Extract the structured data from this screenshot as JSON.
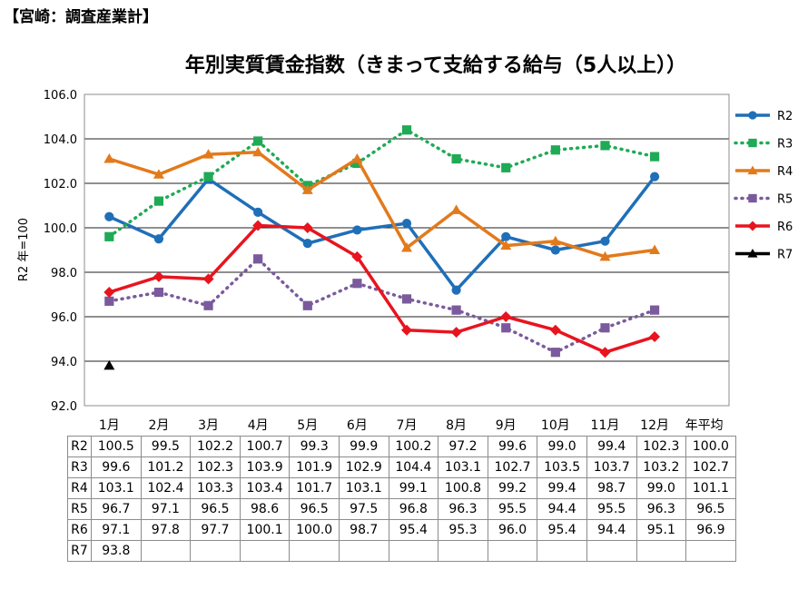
{
  "header": {
    "label": "【宮崎：調査産業計】"
  },
  "chart_data": {
    "type": "line",
    "title": "年別実質賃金指数（きまって支給する給与（5人以上））",
    "ylabel": "R2 年=100",
    "ylim": [
      92.0,
      106.0
    ],
    "yticks": [
      "92.0",
      "94.0",
      "96.0",
      "98.0",
      "100.0",
      "102.0",
      "104.0",
      "106.0"
    ],
    "categories": [
      "1月",
      "2月",
      "3月",
      "4月",
      "5月",
      "6月",
      "7月",
      "8月",
      "9月",
      "10月",
      "11月",
      "12月",
      "年平均"
    ],
    "grid": true,
    "legend_position": "right",
    "series": [
      {
        "name": "R2",
        "color": "#1f6fb8",
        "dash": "solid",
        "marker": "circle",
        "values": [
          100.5,
          99.5,
          102.2,
          100.7,
          99.3,
          99.9,
          100.2,
          97.2,
          99.6,
          99.0,
          99.4,
          102.3,
          100.0
        ]
      },
      {
        "name": "R3",
        "color": "#1faa55",
        "dash": "dotted",
        "marker": "square",
        "values": [
          99.6,
          101.2,
          102.3,
          103.9,
          101.9,
          102.9,
          104.4,
          103.1,
          102.7,
          103.5,
          103.7,
          103.2,
          102.7
        ]
      },
      {
        "name": "R4",
        "color": "#e27a1c",
        "dash": "solid",
        "marker": "triangle",
        "values": [
          103.1,
          102.4,
          103.3,
          103.4,
          101.7,
          103.1,
          99.1,
          100.8,
          99.2,
          99.4,
          98.7,
          99.0,
          101.1
        ]
      },
      {
        "name": "R5",
        "color": "#7a5a9c",
        "dash": "dotted",
        "marker": "square",
        "values": [
          96.7,
          97.1,
          96.5,
          98.6,
          96.5,
          97.5,
          96.8,
          96.3,
          95.5,
          94.4,
          95.5,
          96.3,
          96.5
        ]
      },
      {
        "name": "R6",
        "color": "#e8141e",
        "dash": "solid",
        "marker": "diamond",
        "values": [
          97.1,
          97.8,
          97.7,
          100.1,
          100.0,
          98.7,
          95.4,
          95.3,
          96.0,
          95.4,
          94.4,
          95.1,
          96.9
        ]
      },
      {
        "name": "R7",
        "color": "#000000",
        "dash": "solid",
        "marker": "triangle",
        "values": [
          93.8,
          null,
          null,
          null,
          null,
          null,
          null,
          null,
          null,
          null,
          null,
          null,
          null
        ]
      }
    ]
  },
  "table": {
    "rows": [
      {
        "label": "R2",
        "cells": [
          "100.5",
          "99.5",
          "102.2",
          "100.7",
          "99.3",
          "99.9",
          "100.2",
          "97.2",
          "99.6",
          "99.0",
          "99.4",
          "102.3",
          "100.0"
        ]
      },
      {
        "label": "R3",
        "cells": [
          "99.6",
          "101.2",
          "102.3",
          "103.9",
          "101.9",
          "102.9",
          "104.4",
          "103.1",
          "102.7",
          "103.5",
          "103.7",
          "103.2",
          "102.7"
        ]
      },
      {
        "label": "R4",
        "cells": [
          "103.1",
          "102.4",
          "103.3",
          "103.4",
          "101.7",
          "103.1",
          "99.1",
          "100.8",
          "99.2",
          "99.4",
          "98.7",
          "99.0",
          "101.1"
        ]
      },
      {
        "label": "R5",
        "cells": [
          "96.7",
          "97.1",
          "96.5",
          "98.6",
          "96.5",
          "97.5",
          "96.8",
          "96.3",
          "95.5",
          "94.4",
          "95.5",
          "96.3",
          "96.5"
        ]
      },
      {
        "label": "R6",
        "cells": [
          "97.1",
          "97.8",
          "97.7",
          "100.1",
          "100.0",
          "98.7",
          "95.4",
          "95.3",
          "96.0",
          "95.4",
          "94.4",
          "95.1",
          "96.9"
        ]
      },
      {
        "label": "R7",
        "cells": [
          "93.8",
          "",
          "",
          "",
          "",
          "",
          "",
          "",
          "",
          "",
          "",
          "",
          ""
        ]
      }
    ]
  }
}
